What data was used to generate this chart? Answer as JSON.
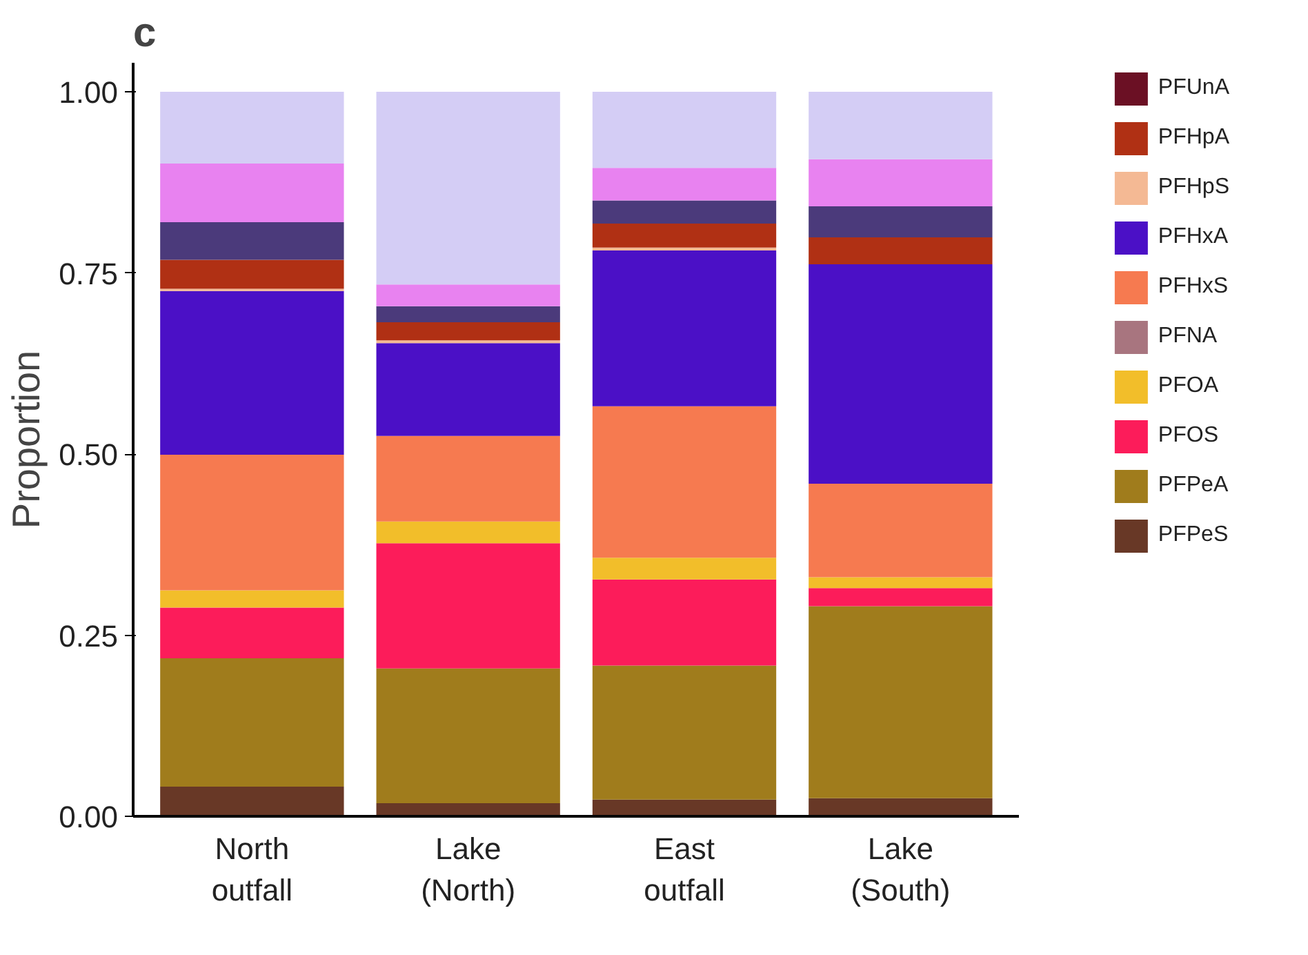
{
  "chart_data": {
    "type": "bar",
    "title": "c",
    "ylabel": "Proportion",
    "stacked": true,
    "categories": [
      "North\noutfall",
      "Lake\n(North)",
      "East\noutfall",
      "Lake\n(South)"
    ],
    "ylim": [
      0,
      1.04
    ],
    "yticks": [
      {
        "value": 0,
        "label": "0.00"
      },
      {
        "value": 0.25,
        "label": "0.25"
      },
      {
        "value": 0.5,
        "label": "0.50"
      },
      {
        "value": 0.75,
        "label": "0.75"
      },
      {
        "value": 1,
        "label": "1.00"
      }
    ],
    "grid": false,
    "legend": "right",
    "series": [
      {
        "name": "PFPeS",
        "color": "#683826",
        "values": [
          0.041,
          0.018,
          0.023,
          0.025
        ]
      },
      {
        "name": "PFPeA",
        "color": "#a07c1c",
        "values": [
          0.177,
          0.186,
          0.185,
          0.265
        ]
      },
      {
        "name": "PFOS",
        "color": "#fc1c5a",
        "values": [
          0.07,
          0.173,
          0.119,
          0.025
        ]
      },
      {
        "name": "PFOA",
        "color": "#f2be2a",
        "values": [
          0.024,
          0.03,
          0.03,
          0.015
        ]
      },
      {
        "name": "PFNA",
        "color": "#a8757f",
        "values": [
          0,
          0,
          0,
          0
        ]
      },
      {
        "name": "PFHxS",
        "color": "#f67a50",
        "values": [
          0.187,
          0.118,
          0.209,
          0.129
        ]
      },
      {
        "name": "PFHxA",
        "color": "#4b10c6",
        "values": [
          0.226,
          0.128,
          0.215,
          0.303
        ]
      },
      {
        "name": "PFHpS",
        "color": "#f4b994",
        "values": [
          0.003,
          0.004,
          0.004,
          0
        ]
      },
      {
        "name": "PFHpA",
        "color": "#b03014",
        "values": [
          0.04,
          0.025,
          0.033,
          0.037
        ]
      },
      {
        "color": "#4b3a7b",
        "values": [
          0.052,
          0.022,
          0.032,
          0.043
        ]
      },
      {
        "color": "#e882f0",
        "values": [
          0.081,
          0.03,
          0.045,
          0.065
        ]
      },
      {
        "color": "#d4cdf5",
        "values": [
          0.099,
          0.266,
          0.105,
          0.093
        ]
      },
      {
        "name": "PFUnA",
        "color": "#6b1024",
        "values": [
          0,
          0,
          0,
          0
        ]
      }
    ]
  }
}
